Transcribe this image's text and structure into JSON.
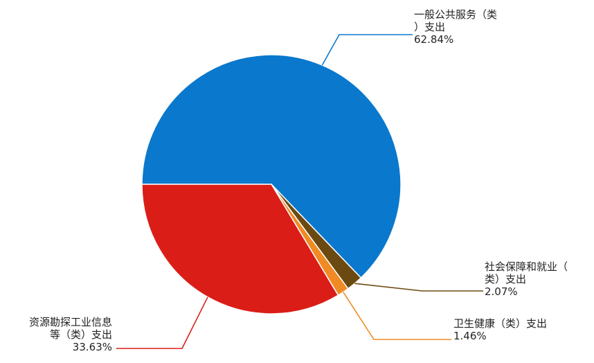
{
  "chart_data": {
    "type": "pie",
    "title": "",
    "series": [
      {
        "label_lines": [
          "一般公共服务（类",
          "）支出"
        ],
        "percent_label": "62.84%",
        "value": 62.84,
        "color": "#0a78cc"
      },
      {
        "label_lines": [
          "社会保障和就业（",
          "类）支出"
        ],
        "percent_label": "2.07%",
        "value": 2.07,
        "color": "#6b4a12"
      },
      {
        "label_lines": [
          "卫生健康（类）支出"
        ],
        "percent_label": "1.46%",
        "value": 1.46,
        "color": "#f08a24"
      },
      {
        "label_lines": [
          "资源勘探工业信息",
          "等（类）支出"
        ],
        "percent_label": "33.63%",
        "value": 33.63,
        "color": "#da1e17"
      }
    ]
  }
}
